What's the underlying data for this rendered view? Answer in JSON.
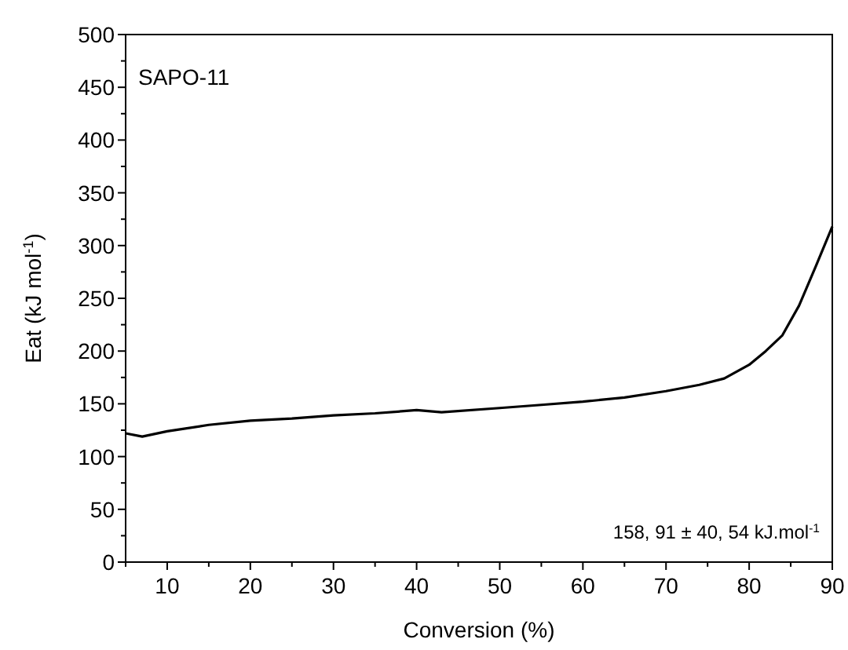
{
  "chart_data": {
    "type": "line",
    "xlabel": "Conversion (%)",
    "ylabel": "Eat (kJ mol$^{-1}$)",
    "annotations": [
      "SAPO-11",
      "158, 91 ± 40, 54 kJ.mol$^{-1}$"
    ],
    "x": [
      5,
      7,
      10,
      15,
      20,
      25,
      30,
      35,
      40,
      43,
      50,
      55,
      60,
      65,
      70,
      74,
      77,
      80,
      82,
      84,
      86,
      88,
      90
    ],
    "series": [
      {
        "color": "#000000",
        "values": [
          122,
          119,
          124,
          130,
          134,
          136,
          139,
          141,
          144,
          142,
          146,
          149,
          152,
          156,
          162,
          168,
          174,
          187,
          200,
          215,
          243,
          280,
          318
        ]
      }
    ],
    "xlim": [
      5,
      90
    ],
    "xticks": [
      {
        "value": 5,
        "label": null
      },
      10,
      {
        "value": 15,
        "label": null
      },
      20,
      {
        "value": 25,
        "label": null
      },
      30,
      {
        "value": 35,
        "label": null
      },
      40,
      {
        "value": 45,
        "label": null
      },
      50,
      {
        "value": 55,
        "label": null
      },
      60,
      {
        "value": 65,
        "label": null
      },
      70,
      {
        "value": 75,
        "label": null
      },
      80,
      {
        "value": 85,
        "label": null
      },
      90
    ],
    "ylim": [
      0,
      500
    ],
    "yticks": [
      0,
      {
        "value": 25,
        "label": null
      },
      50,
      {
        "value": 75,
        "label": null
      },
      100,
      {
        "value": 125,
        "label": null
      },
      150,
      {
        "value": 175,
        "label": null
      },
      200,
      {
        "value": 225,
        "label": null
      },
      250,
      {
        "value": 275,
        "label": null
      },
      300,
      {
        "value": 325,
        "label": null
      },
      350,
      {
        "value": 375,
        "label": null
      },
      400,
      {
        "value": 425,
        "label": null
      },
      450,
      {
        "value": 475,
        "label": null
      },
      500
    ],
    "marker": "none",
    "line_style": "solid"
  }
}
